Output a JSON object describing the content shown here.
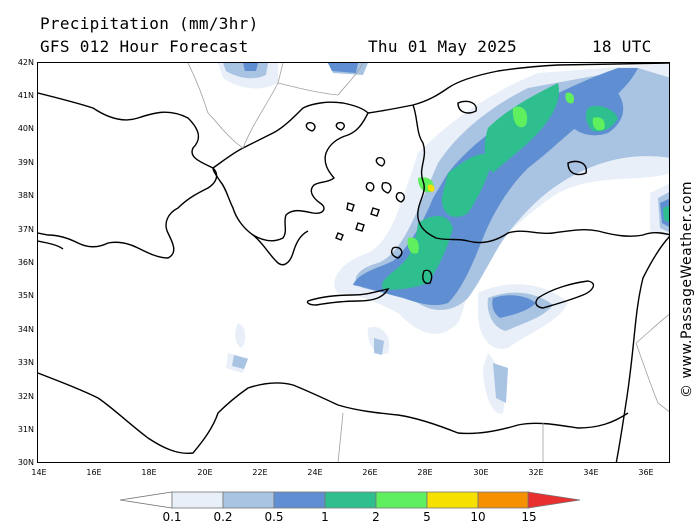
{
  "header": {
    "title": "Precipitation (mm/3hr)",
    "subtitle": "GFS 012 Hour Forecast",
    "date": "Thu 01 May 2025",
    "time": "18 UTC"
  },
  "credit": "© www.PassageWeather.com",
  "lat_ticks": [
    "42N",
    "41N",
    "40N",
    "39N",
    "38N",
    "37N",
    "36N",
    "35N",
    "34N",
    "33N",
    "32N",
    "31N",
    "30N"
  ],
  "lon_ticks": [
    "14E",
    "16E",
    "18E",
    "20E",
    "22E",
    "24E",
    "26E",
    "28E",
    "30E",
    "32E",
    "34E",
    "36E"
  ],
  "colorbar": {
    "labels": [
      "0.1",
      "0.2",
      "0.5",
      "1",
      "2",
      "5",
      "10",
      "15"
    ],
    "colors": [
      "#e8eff8",
      "#a9c3e2",
      "#5f8fd2",
      "#2fbf8e",
      "#5fef5f",
      "#f5e000",
      "#f59000",
      "#e83030"
    ]
  },
  "colors": {
    "coast": "#000000",
    "border": "#a0a0a0"
  }
}
